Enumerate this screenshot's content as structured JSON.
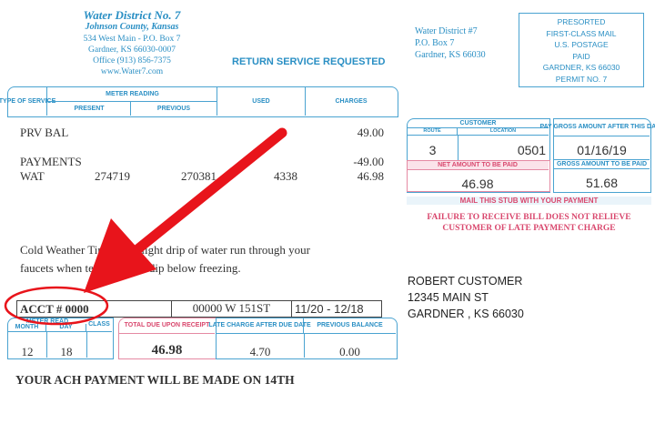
{
  "header": {
    "district": "Water District No. 7",
    "county": "Johnson County, Kansas",
    "address": "534 West Main - P.O. Box 7",
    "city": "Gardner, KS 66030-0007",
    "office": "Office (913) 856-7375",
    "website": "www.Water7.com",
    "return_service": "RETURN SERVICE REQUESTED"
  },
  "table": {
    "headers": {
      "type": "TYPE OF SERVICE",
      "meter_reading": "METER READING",
      "present": "PRESENT",
      "previous": "PREVIOUS",
      "used": "USED",
      "charges": "CHARGES"
    },
    "rows": [
      {
        "type": "PRV BAL",
        "present": "",
        "previous": "",
        "used": "",
        "charges": "49.00"
      },
      {
        "type": "PAYMENTS",
        "present": "",
        "previous": "",
        "used": "",
        "charges": "-49.00"
      },
      {
        "type": "WAT",
        "present": "274719",
        "previous": "270381",
        "used": "4338",
        "charges": "46.98"
      }
    ]
  },
  "tip": {
    "line1": "Cold Weather Tip: Let a slight drip of water run through your",
    "line2": "faucets when temperatures dip below freezing."
  },
  "account": {
    "acct": "ACCT # 0000",
    "service_address": "00000 W 151ST",
    "period": "11/20 - 12/18"
  },
  "meter_read": {
    "label": "METER READ",
    "month_label": "MONTH",
    "day_label": "DAY",
    "class_label": "CLASS",
    "month": "12",
    "day": "18",
    "class": ""
  },
  "totals": {
    "total_due_label": "TOTAL DUE UPON RECEIPT",
    "total_due": "46.98",
    "late_label": "LATE CHARGE AFTER DUE DATE",
    "late": "4.70",
    "prev_label": "PREVIOUS BALANCE",
    "prev": "0.00"
  },
  "ach": "YOUR ACH PAYMENT WILL BE MADE ON 14TH",
  "stub": {
    "return_addr": [
      "Water District #7",
      "P.O. Box 7",
      "Gardner, KS 66030"
    ],
    "postage": [
      "PRESORTED",
      "FIRST-CLASS MAIL",
      "U.S. POSTAGE",
      "PAID",
      "GARDNER, KS 66030",
      "PERMIT NO. 7"
    ],
    "customer_label": "CUSTOMER",
    "route_label": "ROUTE",
    "location_label": "LOCATION",
    "route": "3",
    "location": "0501",
    "pay_gross_label": "PAY GROSS AMOUNT AFTER THIS DATE",
    "pay_gross_date": "01/16/19",
    "net_label": "NET AMOUNT TO BE PAID",
    "net": "46.98",
    "gross_label": "GROSS AMOUNT TO BE PAID",
    "gross": "51.68",
    "mail_stub": "MAIL THIS STUB WITH YOUR PAYMENT",
    "failure1": "FAILURE TO RECEIVE BILL DOES NOT RELIEVE",
    "failure2": "CUSTOMER OF LATE PAYMENT CHARGE"
  },
  "customer": {
    "name": "ROBERT CUSTOMER",
    "street": "12345 MAIN ST",
    "city": "GARDNER , KS 66030"
  },
  "colors": {
    "blue": "#2a8fc4",
    "pink": "#d9486e",
    "annotation_red": "#e8141b"
  }
}
